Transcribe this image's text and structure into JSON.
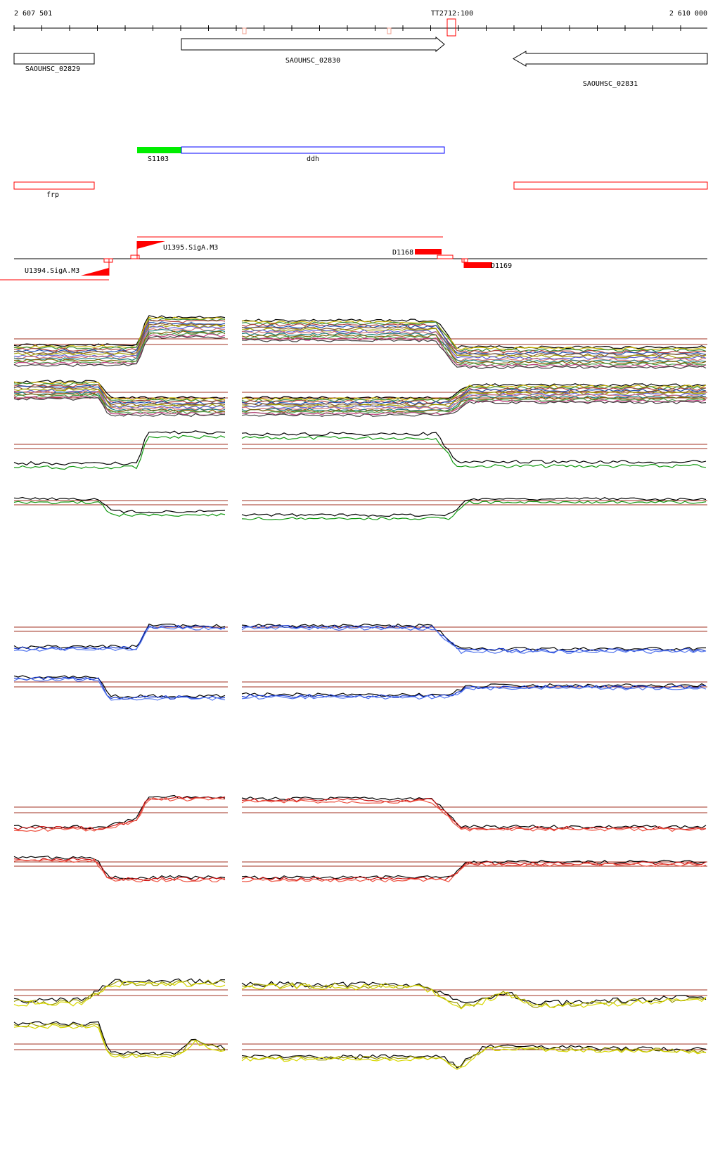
{
  "ruler": {
    "start_label": "2 607 501",
    "end_label": "2 610 000",
    "marker_label": "TT2712:100"
  },
  "genes": {
    "left": "SAOUHSC_02829",
    "middle": "SAOUHSC_02830",
    "right": "SAOUHSC_02831"
  },
  "features": {
    "green_label": "S1103",
    "blue_label": "ddh",
    "frp_label": "frp"
  },
  "regulatory": {
    "u1394": "U1394.SigA.M3",
    "u1395": "U1395.SigA.M3",
    "d1168": "D1168",
    "d1169": "D1169"
  },
  "colors": {
    "gene_outline": "#000000",
    "feature_green": "#00ee00",
    "feature_blue": "#0000ff",
    "annotation_red": "#ff0000",
    "threshold_brown": "#a03020",
    "track_blue": "#1133cc",
    "track_red": "#cc1111",
    "track_yellow": "#d8d800",
    "track_green": "#119911"
  }
}
